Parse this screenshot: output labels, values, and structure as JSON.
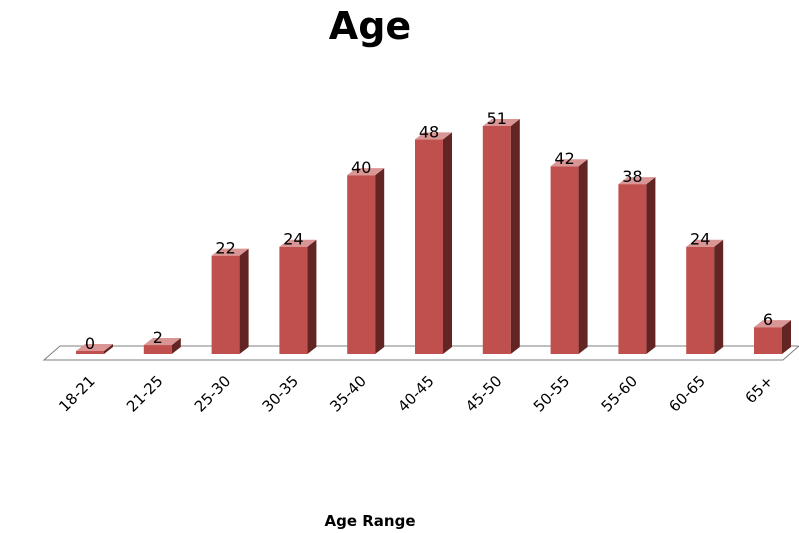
{
  "chart_data": {
    "type": "bar",
    "title": "Age",
    "xlabel": "Age Range",
    "ylabel": "",
    "categories": [
      "18-21",
      "21-25",
      "25-30",
      "30-35",
      "35-40",
      "40-45",
      "45-50",
      "50-55",
      "55-60",
      "60-65",
      "65+"
    ],
    "values": [
      0,
      2,
      22,
      24,
      40,
      48,
      51,
      42,
      38,
      24,
      6
    ],
    "data_labels": [
      "0",
      "2",
      "22",
      "24",
      "40",
      "48",
      "51",
      "42",
      "38",
      "24",
      "6"
    ],
    "ylim": [
      0,
      51
    ],
    "grid": false,
    "legend": "none",
    "style": "3d-column",
    "colors": {
      "bar_front": "#c0504d",
      "bar_side": "#632523",
      "bar_top": "#d99694",
      "floor": "#ffffff",
      "floor_stroke": "#7f7f7f"
    }
  }
}
